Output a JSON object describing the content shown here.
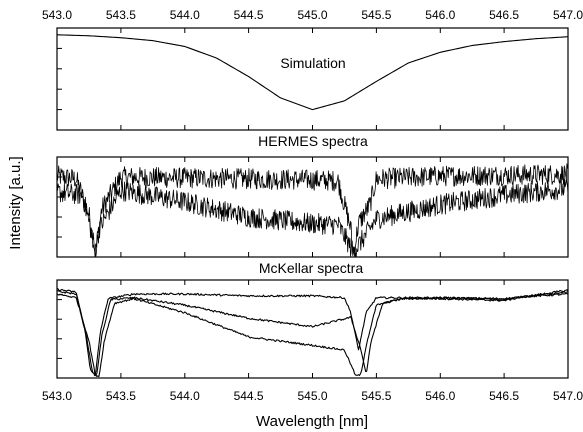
{
  "chart_data": {
    "type": "line",
    "xlabel": "Wavelength [nm]",
    "ylabel": "Intensity [a.u.]",
    "xlim": [
      543.0,
      547.0
    ],
    "x_ticks": [
      "543.0",
      "543.5",
      "544.0",
      "544.5",
      "545.0",
      "545.5",
      "546.0",
      "546.5",
      "547.0"
    ],
    "panels": [
      {
        "title": "Simulation",
        "ylim": [
          0.0,
          1.05
        ],
        "series": [
          {
            "x": [
              543.0,
              543.25,
              543.5,
              543.75,
              544.0,
              544.25,
              544.5,
              544.75,
              545.0,
              545.25,
              545.5,
              545.75,
              546.0,
              546.25,
              546.5,
              546.75,
              547.0
            ],
            "y": [
              0.98,
              0.97,
              0.95,
              0.92,
              0.86,
              0.74,
              0.55,
              0.33,
              0.21,
              0.3,
              0.5,
              0.69,
              0.8,
              0.87,
              0.91,
              0.94,
              0.96
            ]
          }
        ]
      },
      {
        "title": "HERMES spectra",
        "ylim": [
          0.0,
          1.05
        ],
        "series": [
          {
            "x": [
              543.0,
              543.15,
              543.25,
              543.3,
              543.35,
              543.5,
              544.0,
              544.5,
              545.0,
              545.2,
              545.3,
              545.32,
              545.36,
              545.45,
              545.5,
              546.0,
              546.5,
              547.0
            ],
            "y": [
              0.85,
              0.82,
              0.45,
              0.05,
              0.5,
              0.84,
              0.83,
              0.82,
              0.81,
              0.8,
              0.3,
              0.02,
              0.35,
              0.55,
              0.82,
              0.85,
              0.86,
              0.87
            ]
          },
          {
            "x": [
              543.0,
              543.2,
              543.28,
              543.3,
              543.33,
              543.5,
              544.0,
              544.5,
              545.0,
              545.2,
              545.32,
              545.4,
              545.5,
              546.0,
              546.5,
              547.0
            ],
            "y": [
              0.68,
              0.65,
              0.2,
              0.03,
              0.3,
              0.7,
              0.58,
              0.42,
              0.35,
              0.34,
              0.05,
              0.2,
              0.4,
              0.55,
              0.65,
              0.72
            ]
          }
        ]
      },
      {
        "title": "McKellar spectra",
        "ylim": [
          0.0,
          1.05
        ],
        "series": [
          {
            "x": [
              543.0,
              543.15,
              543.22,
              543.26,
              543.3,
              543.34,
              543.4,
              543.6,
              544.0,
              544.5,
              545.0,
              545.25,
              545.3,
              545.36,
              545.42,
              545.5,
              545.7,
              546.0,
              546.5,
              546.65,
              547.0
            ],
            "y": [
              0.95,
              0.92,
              0.5,
              0.1,
              0.02,
              0.5,
              0.85,
              0.9,
              0.9,
              0.88,
              0.88,
              0.86,
              0.7,
              0.3,
              0.7,
              0.86,
              0.86,
              0.86,
              0.85,
              0.87,
              0.9
            ]
          },
          {
            "x": [
              543.0,
              543.15,
              543.23,
              543.28,
              543.31,
              543.35,
              543.42,
              543.6,
              544.0,
              544.5,
              545.0,
              545.3,
              545.38,
              545.42,
              545.46,
              545.55,
              545.7,
              546.0,
              546.5,
              546.65,
              547.0
            ],
            "y": [
              0.93,
              0.9,
              0.45,
              0.05,
              0.02,
              0.45,
              0.84,
              0.86,
              0.78,
              0.64,
              0.55,
              0.65,
              0.3,
              0.04,
              0.4,
              0.8,
              0.85,
              0.86,
              0.84,
              0.87,
              0.92
            ]
          },
          {
            "x": [
              543.0,
              543.15,
              543.25,
              543.3,
              543.33,
              543.37,
              543.45,
              543.6,
              544.0,
              544.5,
              545.0,
              545.25,
              545.34,
              545.38,
              545.42,
              545.5,
              545.7,
              546.0,
              546.5,
              546.65,
              547.0
            ],
            "y": [
              0.9,
              0.86,
              0.4,
              0.03,
              0.02,
              0.4,
              0.8,
              0.85,
              0.7,
              0.44,
              0.35,
              0.3,
              0.02,
              0.04,
              0.35,
              0.78,
              0.85,
              0.85,
              0.83,
              0.87,
              0.94
            ]
          }
        ]
      }
    ]
  }
}
